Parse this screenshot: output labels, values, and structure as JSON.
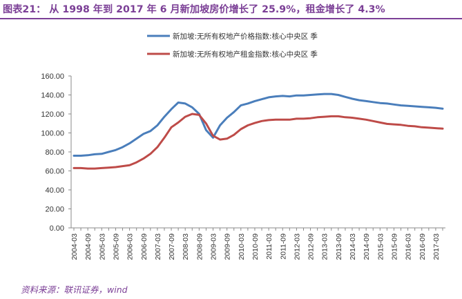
{
  "title": "图表21： 从 1998 年到 2017 年 6 月新加坡房价增长了 25.9%，租金增长了 4.3%",
  "source": "资料来源：联讯证券，wind",
  "chart_data": {
    "type": "line",
    "xlabel": "",
    "ylabel": "",
    "ylim": [
      0,
      160
    ],
    "yticks": [
      "0.00",
      "20.00",
      "40.00",
      "60.00",
      "80.00",
      "100.00",
      "120.00",
      "140.00",
      "160.00"
    ],
    "x": [
      "2004-03",
      "2004-06",
      "2004-09",
      "2004-12",
      "2005-03",
      "2005-06",
      "2005-09",
      "2005-12",
      "2006-03",
      "2006-06",
      "2006-09",
      "2006-12",
      "2007-03",
      "2007-06",
      "2007-09",
      "2007-12",
      "2008-03",
      "2008-06",
      "2008-09",
      "2008-12",
      "2009-03",
      "2009-06",
      "2009-09",
      "2009-12",
      "2010-03",
      "2010-06",
      "2010-09",
      "2010-12",
      "2011-03",
      "2011-06",
      "2011-09",
      "2011-12",
      "2012-03",
      "2012-06",
      "2012-09",
      "2012-12",
      "2013-03",
      "2013-06",
      "2013-09",
      "2013-12",
      "2014-03",
      "2014-06",
      "2014-09",
      "2014-12",
      "2015-03",
      "2015-06",
      "2015-09",
      "2015-12",
      "2016-03",
      "2016-06",
      "2016-09",
      "2016-12",
      "2017-03",
      "2017-06"
    ],
    "x_tick_labels": [
      "2004-03",
      "2004-09",
      "2005-03",
      "2005-09",
      "2006-03",
      "2006-09",
      "2007-03",
      "2007-09",
      "2008-03",
      "2008-09",
      "2009-03",
      "2009-09",
      "2010-03",
      "2010-09",
      "2011-03",
      "2011-09",
      "2012-03",
      "2012-09",
      "2013-03",
      "2013-09",
      "2014-03",
      "2014-09",
      "2015-03",
      "2015-09",
      "2016-03",
      "2016-09",
      "2017-03"
    ],
    "legend_position": "top",
    "grid": false,
    "series": [
      {
        "name": "新加坡:无所有权地产价格指数:核心中央区 季",
        "color": "#4a7ebb",
        "values": [
          76,
          76,
          76.5,
          77.5,
          78,
          80,
          82,
          85,
          89,
          94,
          99,
          102,
          108,
          117,
          125,
          132,
          131,
          127,
          120,
          103,
          95,
          108,
          116,
          122,
          129,
          131,
          133.5,
          135.5,
          137.5,
          138.5,
          139,
          138.5,
          139.5,
          139.5,
          140,
          140.5,
          141,
          141,
          140,
          138,
          136,
          134.5,
          133.5,
          132.5,
          131.5,
          131,
          130,
          129,
          128.5,
          128,
          127.5,
          127,
          126.5,
          125.5
        ]
      },
      {
        "name": "新加坡:无所有权地产租金指数:核心中央区 季",
        "color": "#be4b48",
        "values": [
          63,
          63,
          62.5,
          62.5,
          63,
          63.5,
          64,
          65,
          66,
          69,
          73,
          78,
          85,
          95,
          106,
          111,
          117,
          120,
          119,
          110,
          97,
          93,
          94,
          98,
          104,
          108,
          110.5,
          112.5,
          113.5,
          114,
          114,
          114,
          115,
          115,
          115.5,
          116.5,
          117,
          117.5,
          117.5,
          116.5,
          116,
          115,
          114,
          112.5,
          111,
          109.5,
          109,
          108.5,
          107.5,
          107,
          106,
          105.5,
          105,
          104.5
        ]
      }
    ]
  }
}
